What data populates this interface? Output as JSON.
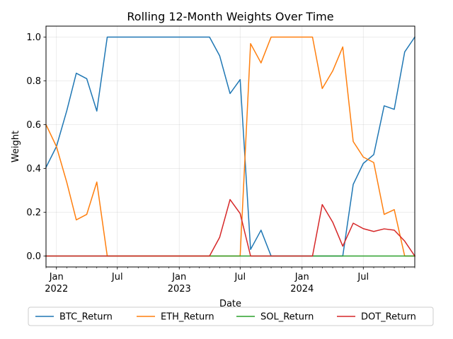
{
  "chart_data": {
    "type": "line",
    "title": "Rolling 12-Month Weights Over Time",
    "xlabel": "Date",
    "ylabel": "Weight",
    "x": [
      "2021-12-01",
      "2022-01-01",
      "2022-02-01",
      "2022-03-01",
      "2022-04-01",
      "2022-05-01",
      "2022-06-01",
      "2022-07-01",
      "2022-08-01",
      "2022-09-01",
      "2022-10-01",
      "2022-11-01",
      "2022-12-01",
      "2023-01-01",
      "2023-02-01",
      "2023-03-01",
      "2023-04-01",
      "2023-05-01",
      "2023-06-01",
      "2023-07-01",
      "2023-08-01",
      "2023-09-01",
      "2023-10-01",
      "2023-11-01",
      "2023-12-01",
      "2024-01-01",
      "2024-02-01",
      "2024-03-01",
      "2024-04-01",
      "2024-05-01",
      "2024-06-01",
      "2024-07-01",
      "2024-08-01",
      "2024-09-01",
      "2024-10-01",
      "2024-11-01",
      "2024-12-01"
    ],
    "xlim": [
      "2021-12-01",
      "2024-12-01"
    ],
    "ylim": [
      -0.05,
      1.05
    ],
    "yticks": [
      0.0,
      0.2,
      0.4,
      0.6,
      0.8,
      1.0
    ],
    "ytick_labels": [
      "0.0",
      "0.2",
      "0.4",
      "0.6",
      "0.8",
      "1.0"
    ],
    "xticks": [
      {
        "date": "2022-01-01",
        "label": "Jan",
        "sublabel": "2022"
      },
      {
        "date": "2022-07-01",
        "label": "Jul",
        "sublabel": ""
      },
      {
        "date": "2023-01-01",
        "label": "Jan",
        "sublabel": "2023"
      },
      {
        "date": "2023-07-01",
        "label": "Jul",
        "sublabel": ""
      },
      {
        "date": "2024-01-01",
        "label": "Jan",
        "sublabel": "2024"
      },
      {
        "date": "2024-07-01",
        "label": "Jul",
        "sublabel": ""
      }
    ],
    "grid": true,
    "legend_position": "bottom-center",
    "series": [
      {
        "name": "BTC_Return",
        "color": "#1f77b4",
        "values": [
          0.405,
          0.5,
          0.665,
          0.835,
          0.81,
          0.662,
          1.0,
          1.0,
          1.0,
          1.0,
          1.0,
          1.0,
          1.0,
          1.0,
          1.0,
          1.0,
          1.0,
          0.915,
          0.742,
          0.806,
          0.03,
          0.118,
          0.0,
          0.0,
          0.0,
          0.0,
          0.0,
          0.0,
          0.0,
          0.0,
          0.327,
          0.423,
          0.463,
          0.686,
          0.67,
          0.932,
          1.0
        ]
      },
      {
        "name": "ETH_Return",
        "color": "#ff7f0e",
        "values": [
          0.6,
          0.5,
          0.335,
          0.165,
          0.19,
          0.338,
          0.0,
          0.0,
          0.0,
          0.0,
          0.0,
          0.0,
          0.0,
          0.0,
          0.0,
          0.0,
          0.0,
          0.0,
          0.0,
          0.0,
          0.97,
          0.882,
          1.0,
          1.0,
          1.0,
          1.0,
          1.0,
          0.765,
          0.845,
          0.955,
          0.523,
          0.452,
          0.427,
          0.19,
          0.212,
          0.0,
          0.0
        ]
      },
      {
        "name": "SOL_Return",
        "color": "#2ca02c",
        "values": [
          0.0,
          0.0,
          0.0,
          0.0,
          0.0,
          0.0,
          0.0,
          0.0,
          0.0,
          0.0,
          0.0,
          0.0,
          0.0,
          0.0,
          0.0,
          0.0,
          0.0,
          0.0,
          0.0,
          0.0,
          0.0,
          0.0,
          0.0,
          0.0,
          0.0,
          0.0,
          0.0,
          0.0,
          0.0,
          0.0,
          0.0,
          0.0,
          0.0,
          0.0,
          0.0,
          0.0,
          0.0
        ]
      },
      {
        "name": "DOT_Return",
        "color": "#d62728",
        "values": [
          0.0,
          0.0,
          0.0,
          0.0,
          0.0,
          0.0,
          0.0,
          0.0,
          0.0,
          0.0,
          0.0,
          0.0,
          0.0,
          0.0,
          0.0,
          0.0,
          0.0,
          0.085,
          0.258,
          0.194,
          0.0,
          0.0,
          0.0,
          0.0,
          0.0,
          0.0,
          0.0,
          0.235,
          0.155,
          0.045,
          0.15,
          0.125,
          0.112,
          0.124,
          0.118,
          0.068,
          0.0
        ]
      }
    ]
  }
}
